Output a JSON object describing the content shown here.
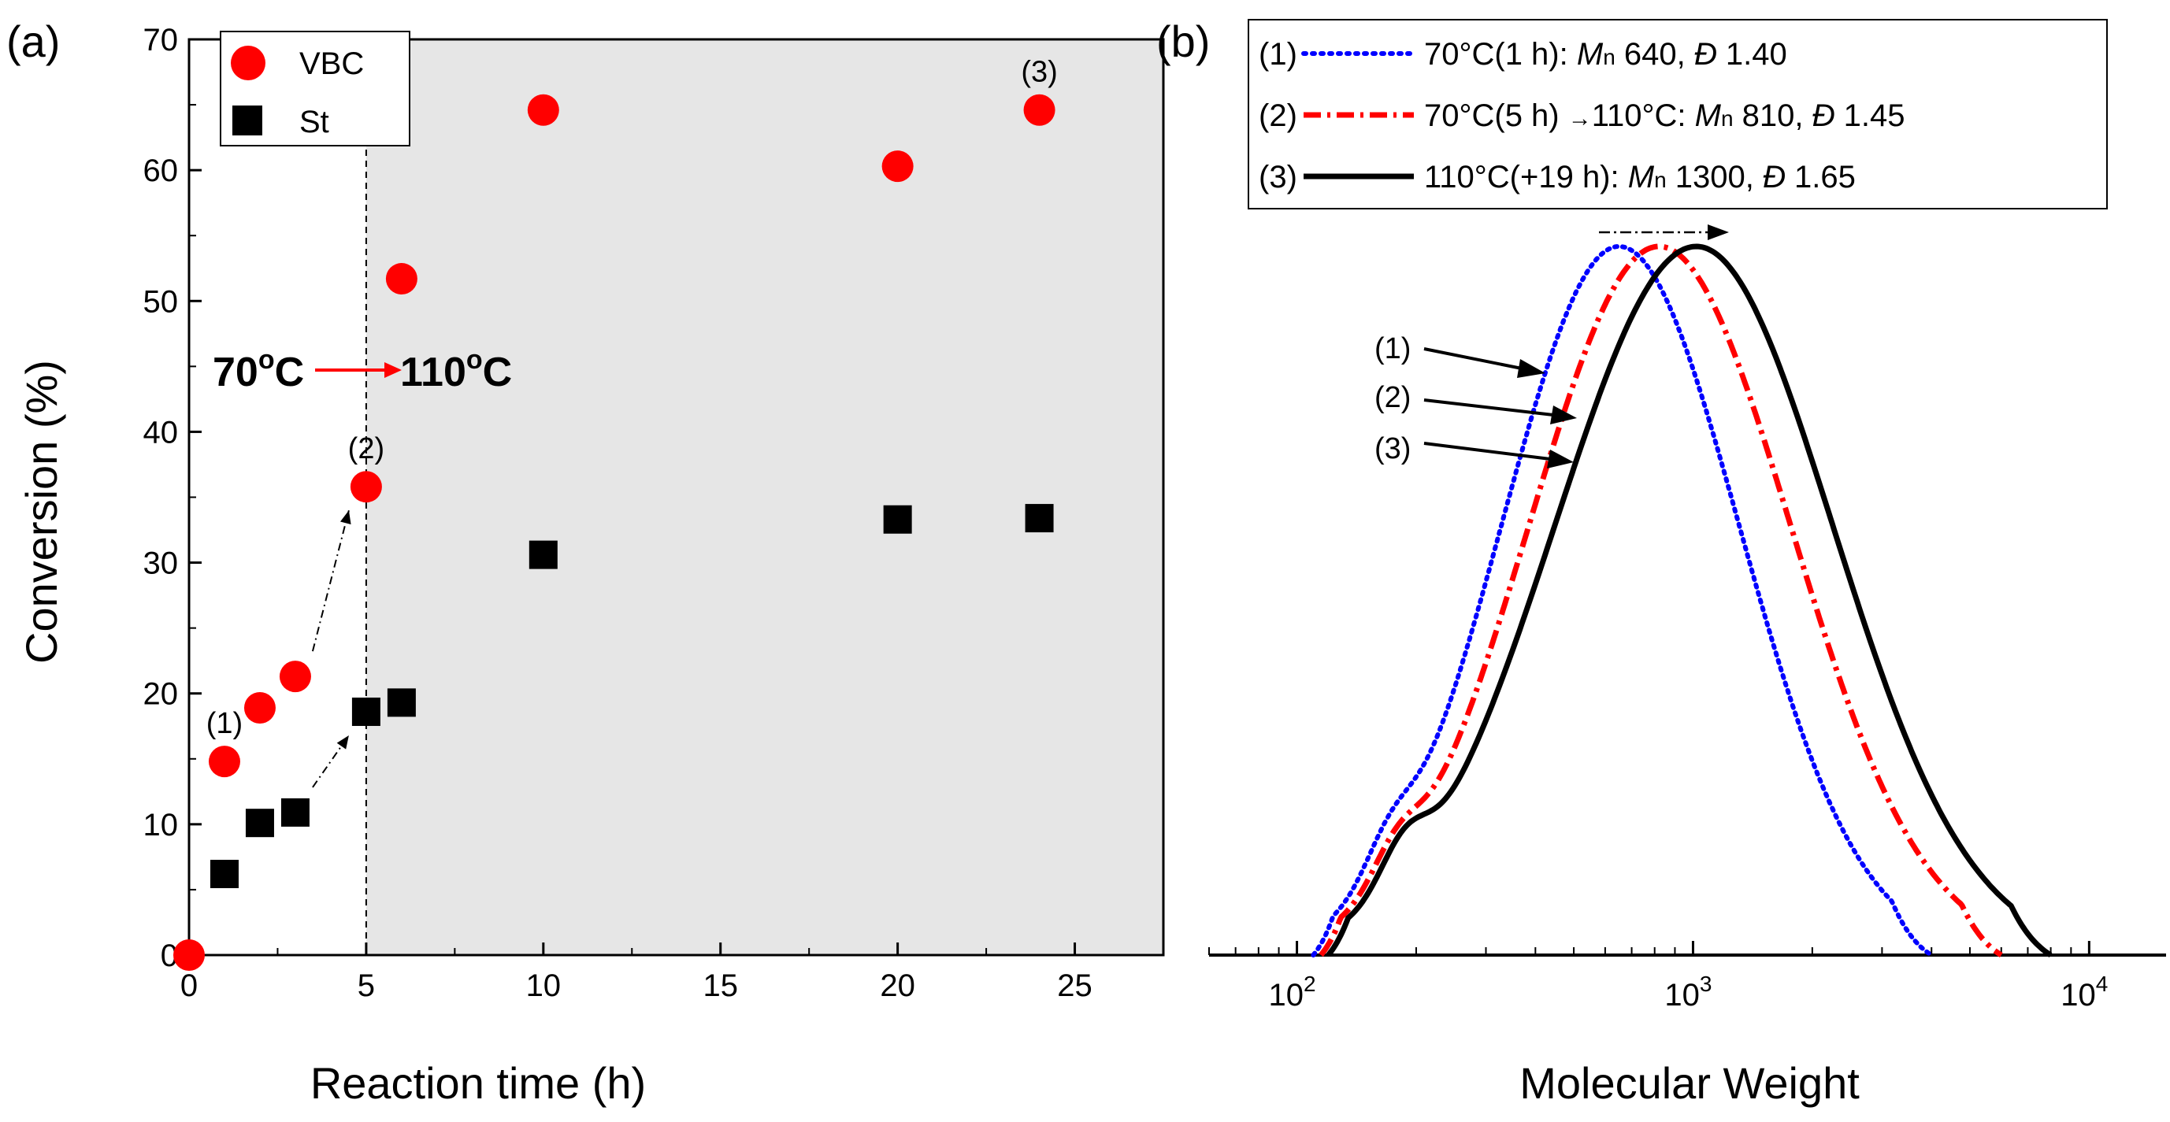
{
  "chart_data": [
    {
      "type": "scatter",
      "panel_label": "(a)",
      "xlabel": "Reaction time (h)",
      "ylabel": "Conversion (%)",
      "xlim": [
        0,
        27.5
      ],
      "ylim": [
        0,
        70
      ],
      "xticks": [
        0,
        5,
        10,
        15,
        20,
        25
      ],
      "yticks": [
        0,
        10,
        20,
        30,
        40,
        50,
        60,
        70
      ],
      "legend_position": "top-left",
      "shaded_region": {
        "x_from": 5,
        "x_to": 27.5,
        "color": "#e6e6e6"
      },
      "divider_x": 5,
      "series": [
        {
          "name": "VBC",
          "marker": "circle",
          "color": "#ff0000",
          "x": [
            0,
            1,
            2,
            3,
            5,
            6,
            10,
            20,
            24
          ],
          "y": [
            0,
            14.8,
            18.9,
            21.3,
            35.8,
            51.7,
            64.6,
            60.3,
            64.6
          ]
        },
        {
          "name": "St",
          "marker": "square",
          "color": "#000000",
          "x": [
            1,
            2,
            3,
            5,
            6,
            10,
            20,
            24
          ],
          "y": [
            6.2,
            10.1,
            10.9,
            18.6,
            19.3,
            30.6,
            33.3,
            33.4
          ]
        }
      ],
      "annotations": [
        {
          "text": "(1)",
          "x": 1,
          "y": 14.8
        },
        {
          "text": "(2)",
          "x": 5,
          "y": 35.8
        },
        {
          "text": "(3)",
          "x": 24,
          "y": 64.6
        }
      ],
      "temperature_label": {
        "from": "70",
        "to": "110",
        "unit": "C",
        "deg": "o"
      }
    },
    {
      "type": "line",
      "panel_label": "(b)",
      "xlabel": "Molecular Weight",
      "ylabel": "",
      "xscale": "log",
      "xlim": [
        60,
        16000
      ],
      "xticks": [
        {
          "base": "10",
          "exp": "2",
          "value": 100
        },
        {
          "base": "10",
          "exp": "3",
          "value": 1000
        },
        {
          "base": "10",
          "exp": "4",
          "value": 10000
        }
      ],
      "legend_position": "top",
      "series": [
        {
          "id": "(1)",
          "color": "#0000ff",
          "style": "dotted",
          "peak_mw": 650,
          "lo_mw": 110,
          "hi_mw": 4000,
          "shoulder": 0.05,
          "legend": {
            "id": "(1)",
            "cond": "70°C(1 h): ",
            "mn_label": "M",
            "mn_sub": "n",
            "mn": " 640, ",
            "d_label": "Đ",
            "d": " 1.40"
          }
        },
        {
          "id": "(2)",
          "color": "#ff0000",
          "style": "dashdot",
          "peak_mw": 820,
          "lo_mw": 115,
          "hi_mw": 6000,
          "shoulder": 0.05,
          "legend": {
            "id": "(2)",
            "cond": "70°C(5 h) ",
            "arrow": "→",
            "cond2": "110°C: ",
            "mn_label": "M",
            "mn_sub": "n",
            "mn": " 810, ",
            "d_label": "Đ",
            "d": " 1.45"
          }
        },
        {
          "id": "(3)",
          "color": "#000000",
          "style": "solid",
          "peak_mw": 1020,
          "lo_mw": 120,
          "hi_mw": 8000,
          "shoulder": 0.06,
          "legend": {
            "id": "(3)",
            "cond": "110°C(+19 h): ",
            "mn_label": "M",
            "mn_sub": "n",
            "mn": " 1300, ",
            "d_label": "Đ",
            "d": " 1.65"
          }
        }
      ],
      "pointer_labels": [
        "(1)",
        "(2)",
        "(3)"
      ]
    }
  ]
}
